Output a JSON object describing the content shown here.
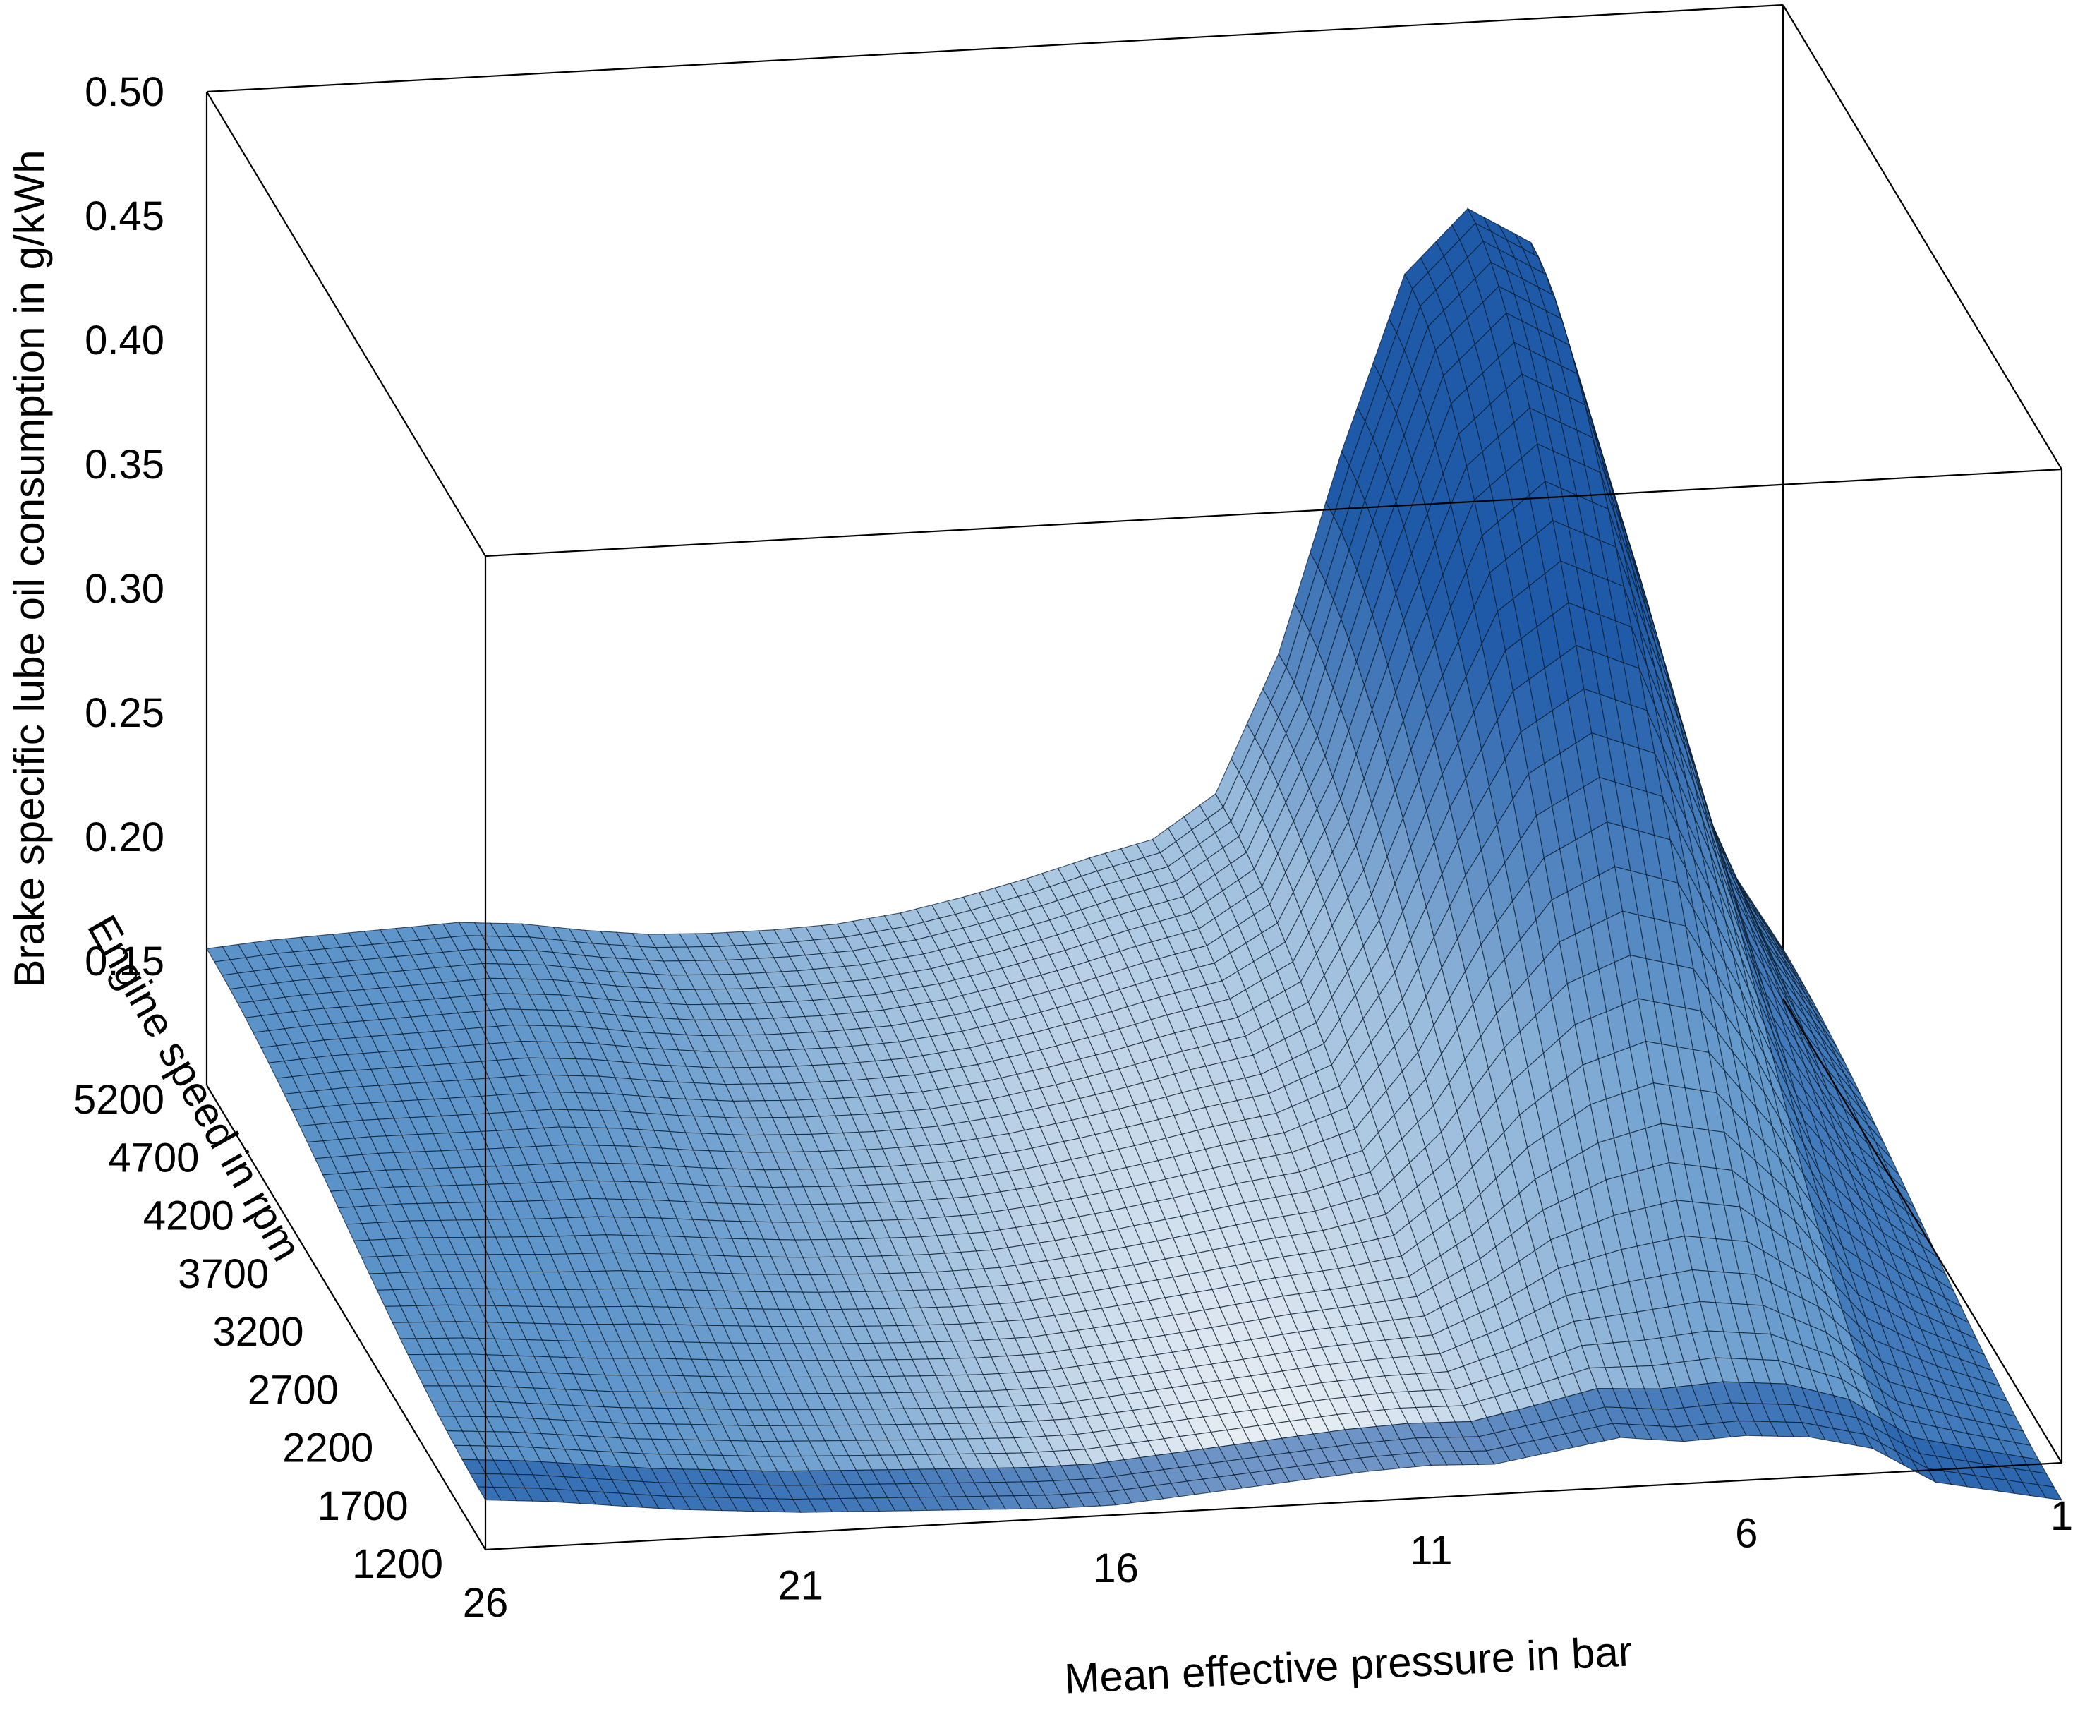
{
  "chart_data": {
    "type": "surface",
    "zlabel": "Brake specific lube oil consumption in g/kWh",
    "ylabel": "Engine speed in rpm",
    "xlabel": "Mean effective pressure in bar",
    "z_ticks": [
      "0.15",
      "0.20",
      "0.25",
      "0.30",
      "0.35",
      "0.40",
      "0.45",
      "0.50"
    ],
    "z_tick_values": [
      0.15,
      0.2,
      0.25,
      0.3,
      0.35,
      0.4,
      0.45,
      0.5
    ],
    "y_ticks": [
      "5200",
      "4700",
      "4200",
      "3700",
      "3200",
      "2700",
      "2200",
      "1700",
      "1200"
    ],
    "x_ticks": [
      "26",
      "21",
      "16",
      "11",
      "6",
      "1"
    ],
    "x_tick_values": [
      26,
      21,
      16,
      11,
      6,
      1
    ],
    "zlim": [
      0.1,
      0.5
    ],
    "x_range": [
      1,
      26
    ],
    "y_range": [
      1200,
      5200
    ],
    "grid": false,
    "surface": {
      "x": [
        26,
        25,
        24,
        23,
        22,
        21,
        20,
        19,
        18,
        17,
        16,
        15,
        14,
        13,
        12,
        11,
        10,
        9,
        8,
        7,
        6,
        5,
        4,
        3,
        2,
        1
      ],
      "back_edge_rpm": 5200,
      "front_edge_rpm": 1200,
      "back_edge_z": [
        0.155,
        0.157,
        0.158,
        0.159,
        0.16,
        0.158,
        0.154,
        0.151,
        0.15,
        0.15,
        0.151,
        0.154,
        0.159,
        0.165,
        0.172,
        0.178,
        0.195,
        0.25,
        0.33,
        0.4,
        0.425,
        0.41,
        0.32,
        0.22,
        0.16,
        0.12
      ],
      "front_edge_z": [
        0.12,
        0.118,
        0.115,
        0.112,
        0.11,
        0.108,
        0.107,
        0.106,
        0.105,
        0.104,
        0.104,
        0.106,
        0.108,
        0.11,
        0.112,
        0.113,
        0.112,
        0.116,
        0.12,
        0.117,
        0.118,
        0.116,
        0.11,
        0.095,
        0.09,
        0.085
      ]
    },
    "colors": {
      "dark": "#1f5aa8",
      "mid": "#5b93c9",
      "light": "#cfe0ef",
      "pale": "#eef2f6",
      "mesh": "#0a1a2a"
    }
  }
}
